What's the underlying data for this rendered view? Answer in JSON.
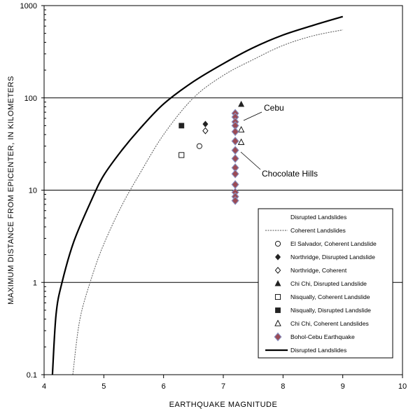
{
  "chart_data": {
    "type": "scatter",
    "xlabel": "EARTHQUAKE MAGNITUDE",
    "ylabel": "MAXIMUM DISTANCE FROM EPICENTER, IN KILOMETERS",
    "xlim": [
      4,
      10
    ],
    "ylim": [
      0.1,
      1000
    ],
    "yscale": "log",
    "x_ticks": [
      "4",
      "5",
      "6",
      "7",
      "8",
      "9",
      "10"
    ],
    "y_ticks": [
      "0.1",
      "1",
      "10",
      "100",
      "1000"
    ],
    "grid": "horizontal major lines",
    "legend_position": "bottom-right",
    "colors": {
      "bohol": "#9b4a55",
      "bohol_outline": "#8a92c2",
      "axis": "#000000"
    },
    "curves": [
      {
        "name": "Disrupted Landslides",
        "style": "solid-thick",
        "x": [
          4.14,
          4.2,
          4.3,
          4.5,
          4.8,
          5.0,
          5.3,
          5.6,
          6.0,
          6.5,
          7.0,
          7.5,
          8.0,
          8.5,
          9.0
        ],
        "y": [
          0.1,
          0.45,
          1.0,
          2.8,
          8.0,
          14.5,
          27,
          46,
          86,
          150,
          235,
          350,
          480,
          610,
          760
        ]
      },
      {
        "name": "Coherent Landslides",
        "style": "dotted",
        "x": [
          4.48,
          4.6,
          4.8,
          5.0,
          5.3,
          5.6,
          6.0,
          6.5,
          7.0,
          7.5,
          8.0,
          8.5,
          9.0
        ],
        "y": [
          0.1,
          0.4,
          1.15,
          2.6,
          6.8,
          15,
          40,
          100,
          175,
          260,
          370,
          470,
          545
        ]
      }
    ],
    "series": [
      {
        "name": "El Salvador, Coherent Landslide",
        "marker": "circle-open",
        "points": [
          [
            6.6,
            30
          ]
        ]
      },
      {
        "name": "Northridge, Disrupted Landslide",
        "marker": "diamond-filled",
        "points": [
          [
            6.7,
            52
          ]
        ]
      },
      {
        "name": "Northridge, Coherent",
        "marker": "diamond-open",
        "points": [
          [
            6.7,
            44
          ]
        ]
      },
      {
        "name": "Chi Chi, Disrupted Landslide",
        "marker": "triangle-filled",
        "points": [
          [
            7.3,
            85
          ]
        ]
      },
      {
        "name": "Nisqually, Coherent Landslide",
        "marker": "square-open",
        "points": [
          [
            6.3,
            24
          ]
        ]
      },
      {
        "name": "Nisqually, Disrupted Landslide",
        "marker": "square-filled",
        "points": [
          [
            6.3,
            50
          ]
        ]
      },
      {
        "name": "Chi Chi, Coherent Landslides",
        "marker": "triangle-open",
        "points": [
          [
            7.3,
            45
          ],
          [
            7.3,
            33
          ]
        ]
      },
      {
        "name": "Bohol-Cebu Earthquake",
        "marker": "diamond-bohol",
        "points": [
          [
            7.2,
            68
          ],
          [
            7.2,
            62
          ],
          [
            7.2,
            55
          ],
          [
            7.2,
            50
          ],
          [
            7.2,
            43
          ],
          [
            7.2,
            34
          ],
          [
            7.2,
            27
          ],
          [
            7.2,
            22
          ],
          [
            7.2,
            17.5
          ],
          [
            7.2,
            15
          ],
          [
            7.2,
            11.5
          ],
          [
            7.2,
            9.5
          ],
          [
            7.2,
            8.5
          ],
          [
            7.2,
            7.7
          ]
        ]
      }
    ],
    "legend_entries": [
      {
        "label": "Disrupted Landslides",
        "symbol": "none"
      },
      {
        "label": "Coherent Landslides",
        "symbol": "dotted-line"
      },
      {
        "label": "El Salvador, Coherent Landslide",
        "symbol": "circle-open"
      },
      {
        "label": "Northridge, Disrupted Landslide",
        "symbol": "diamond-filled"
      },
      {
        "label": "Northridge, Coherent",
        "symbol": "diamond-open"
      },
      {
        "label": "Chi Chi, Disrupted Landslide",
        "symbol": "triangle-filled"
      },
      {
        "label": "Nisqually, Coherent Landslide",
        "symbol": "square-open"
      },
      {
        "label": "Nisqually, Disrupted Landslide",
        "symbol": "square-filled"
      },
      {
        "label": "Chi Chi, Coherent Landslides",
        "symbol": "triangle-open"
      },
      {
        "label": "Bohol-Cebu Earthquake",
        "symbol": "diamond-bohol"
      },
      {
        "label": "Disrupted Landslides",
        "symbol": "solid-line"
      }
    ],
    "annotations": [
      {
        "text": "Cebu",
        "target": [
          7.2,
          65
        ]
      },
      {
        "text": "Chocolate Hills",
        "target": [
          7.2,
          26
        ]
      }
    ]
  }
}
